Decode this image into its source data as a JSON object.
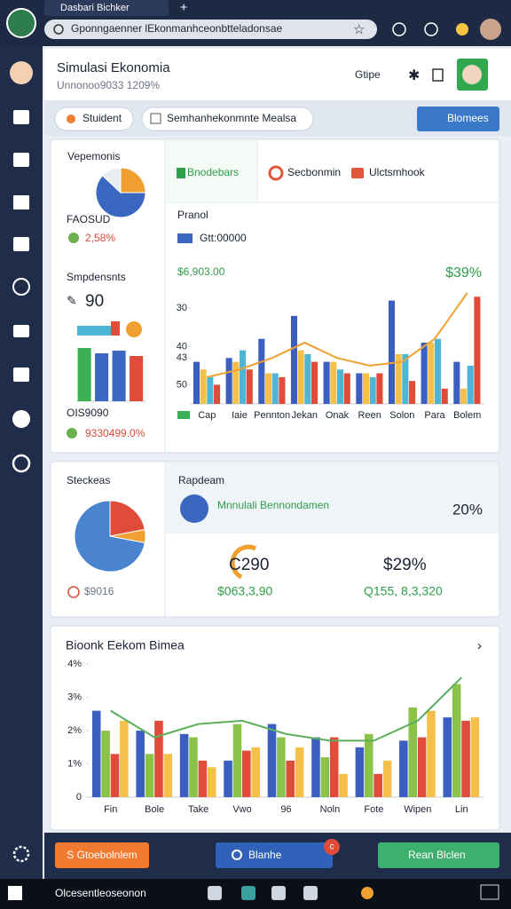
{
  "browser": {
    "tab_title": "Dasbari Bichker",
    "address": "Gponngaenner lEkonmanhceonbtteladonsae"
  },
  "header": {
    "title": "Simulasi Ekonomia",
    "subtitle": "Unnonoo9033 1209%",
    "menu": "Gtipe"
  },
  "toolbar": {
    "pill_1": "Stuident",
    "pill_2": "Semhanhekonmnte Mealsa",
    "button": "Blomees"
  },
  "card_1": {
    "label_1": "FAOSUD",
    "stat_1": "2,58%",
    "heading_2": "Smpdensnts",
    "stat_2": "90",
    "label_2": "OIS9090",
    "stat_3": "9330499.0%",
    "tabs": [
      "Bnodebars",
      "Secbonmin",
      "Ulctsmhook"
    ],
    "panel_label": "Pranol",
    "legend_text": "Gtt:00000",
    "amount": "$6,903.00",
    "change": "$39%"
  },
  "card_2": {
    "footer": "$9016",
    "panel_title": "Rapdeam",
    "banner": "Mnnulali Bennondamen",
    "banner_value": "20%",
    "metric_1": "C290",
    "metric_2": "$29%",
    "amount_1": "$063,3,90",
    "amount_2": "Q155, 8,3,320"
  },
  "actions": {
    "button_1": "S Gtoebolnlem",
    "button_2": "Blanhe",
    "badge": "c",
    "button_3": "Rean Blclen"
  },
  "taskbar": {
    "search": "Olcesentleoseonon"
  },
  "chart_data": [
    {
      "type": "pie",
      "title": "Vepemonis",
      "values": [
        25,
        62,
        13
      ],
      "colors": [
        "#f0a030",
        "#3a68c0",
        "#e8edf4"
      ]
    },
    {
      "type": "bar",
      "values": [
        10,
        9,
        9.5,
        8.5
      ],
      "colors": [
        "#3cb054",
        "#3a68c0",
        "#3a68c0",
        "#e04b3a"
      ],
      "ylim": [
        0,
        10
      ]
    },
    {
      "type": "bar",
      "categories": [
        "Cap",
        "Iaie",
        "Pennton",
        "Jekan",
        "Onak",
        "Reen",
        "Solon",
        "Para",
        "Bolem"
      ],
      "series": [
        {
          "color": "#3a5fc0",
          "values": [
            44,
            43,
            38,
            32,
            44,
            47,
            28,
            39,
            44
          ]
        },
        {
          "color": "#f5c04a",
          "values": [
            46,
            44,
            47,
            41,
            44,
            47,
            42,
            39,
            51
          ]
        },
        {
          "color": "#4db6d6",
          "values": [
            48,
            41,
            47,
            42,
            46,
            48,
            42,
            38,
            45
          ]
        },
        {
          "color": "#e04b3a",
          "values": [
            50,
            46,
            48,
            44,
            47,
            47,
            49,
            51,
            27
          ]
        },
        {
          "type": "line",
          "color": "#f0a030",
          "values": [
            48,
            46,
            43,
            39,
            43,
            45,
            44,
            38,
            26
          ]
        }
      ],
      "ylim": [
        55,
        26
      ],
      "yticks": [
        30,
        40,
        43,
        50
      ],
      "grid": false
    },
    {
      "type": "pie",
      "title": "Steckeas",
      "values": [
        22,
        6,
        72
      ],
      "colors": [
        "#e04b3a",
        "#f0a030",
        "#4a84d0"
      ]
    },
    {
      "type": "bar",
      "title": "Bioonk Eekom Bimea",
      "categories": [
        "Fin",
        "Bole",
        "Take",
        "Vwo",
        "96",
        "Noln",
        "Fote",
        "Wipen",
        "Lin"
      ],
      "series": [
        {
          "color": "#3a5fc0",
          "values": [
            2.6,
            2.0,
            1.9,
            1.1,
            2.2,
            1.8,
            1.5,
            1.7,
            2.4
          ]
        },
        {
          "color": "#8bc34a",
          "values": [
            2.0,
            1.3,
            1.8,
            2.2,
            1.8,
            1.2,
            1.9,
            2.7,
            3.4
          ]
        },
        {
          "color": "#e04b3a",
          "values": [
            1.3,
            2.3,
            1.1,
            1.4,
            1.1,
            1.8,
            0.7,
            1.8,
            2.3
          ]
        },
        {
          "color": "#f5c04a",
          "values": [
            2.3,
            1.3,
            0.9,
            1.5,
            1.5,
            0.7,
            1.1,
            2.6,
            2.4
          ]
        },
        {
          "type": "line",
          "color": "#5cae5c",
          "values": [
            2.6,
            1.8,
            2.2,
            2.3,
            1.9,
            1.7,
            1.7,
            2.3,
            3.6
          ]
        }
      ],
      "ylim": [
        0,
        4.3
      ],
      "yticks": [
        0,
        {
          "value": 1,
          "label": "1%"
        },
        {
          "value": 2,
          "label": "2%"
        },
        {
          "value": 3,
          "label": "3%"
        },
        {
          "value": 4,
          "label": "4%"
        }
      ],
      "grid": false
    }
  ]
}
